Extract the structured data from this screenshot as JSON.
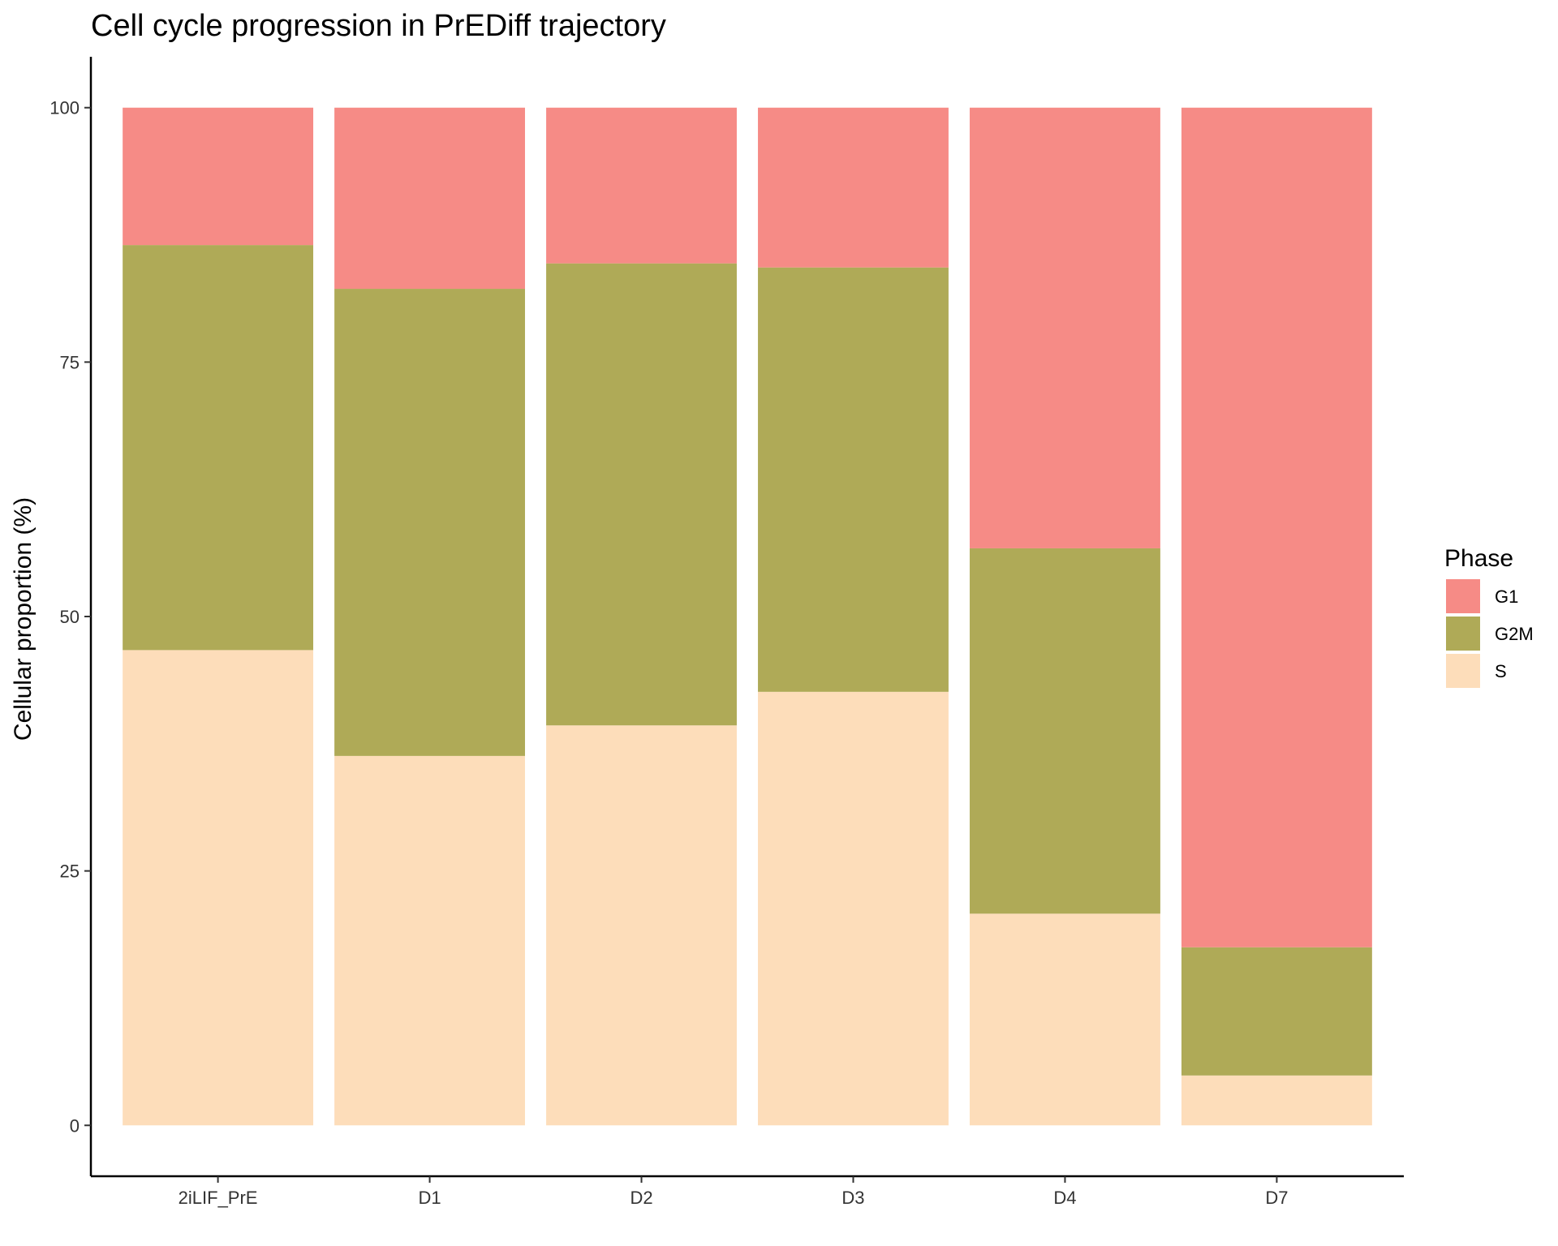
{
  "chart_data": {
    "type": "bar",
    "stacked": true,
    "title": "Cell cycle progression in PrEDiff trajectory",
    "xlabel": "",
    "ylabel": "Cellular proportion (%)",
    "ylim": [
      -5,
      105
    ],
    "yticks": [
      "0",
      "25",
      "50",
      "75",
      "100"
    ],
    "categories": [
      "2iLIF_PrE",
      "D1",
      "D2",
      "D3",
      "D4",
      "D7"
    ],
    "series": [
      {
        "name": "S",
        "color": "#FDDDBA",
        "values": [
          46.7,
          36.3,
          39.3,
          42.6,
          20.8,
          4.9
        ]
      },
      {
        "name": "G2M",
        "color": "#AFAA57",
        "values": [
          39.8,
          45.9,
          45.4,
          41.7,
          35.9,
          12.6
        ]
      },
      {
        "name": "G1",
        "color": "#F68B86",
        "values": [
          13.5,
          17.8,
          15.3,
          15.7,
          43.3,
          82.5
        ]
      }
    ],
    "legend": {
      "title": "Phase",
      "placement": "right",
      "entries": [
        "G1",
        "G2M",
        "S"
      ]
    },
    "grid": false
  }
}
